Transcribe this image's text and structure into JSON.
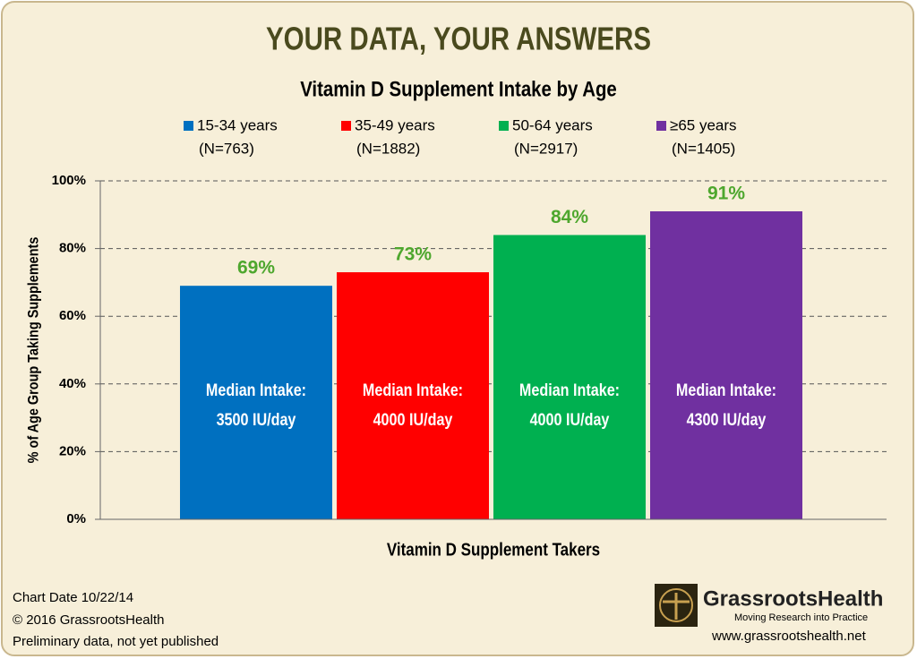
{
  "chart_data": {
    "type": "bar",
    "title": "YOUR DATA, YOUR ANSWERS",
    "subtitle": "Vitamin D Supplement Intake by Age",
    "y_label": "% of Age Group Taking Supplements",
    "categories": [
      "Vitamin D Supplement Takers"
    ],
    "series": [
      {
        "name": "15-34 years",
        "sample": "(N=763)",
        "color": "#0070c0",
        "values": [
          69
        ],
        "value_labels": [
          "69%"
        ],
        "note_lines": [
          "Median Intake:",
          "3500 IU/day"
        ]
      },
      {
        "name": "35-49 years",
        "sample": "(N=1882)",
        "color": "#ff0000",
        "values": [
          73
        ],
        "value_labels": [
          "73%"
        ],
        "note_lines": [
          "Median Intake:",
          "4000 IU/day"
        ]
      },
      {
        "name": "50-64 years",
        "sample": "(N=2917)",
        "color": "#00b050",
        "values": [
          84
        ],
        "value_labels": [
          "84%"
        ],
        "note_lines": [
          "Median Intake:",
          "4000 IU/day"
        ]
      },
      {
        "name": "≥65 years",
        "sample": "(N=1405)",
        "color": "#7030a0",
        "values": [
          91
        ],
        "value_labels": [
          "91%"
        ],
        "note_lines": [
          "Median Intake:",
          "4300 IU/day"
        ]
      }
    ],
    "value_label_color": "#4ea72e",
    "ylim": [
      0,
      100
    ],
    "yticks": [
      {
        "value": 0,
        "label": "0%"
      },
      {
        "value": 20,
        "label": "20%"
      },
      {
        "value": 40,
        "label": "40%"
      },
      {
        "value": 60,
        "label": "60%"
      },
      {
        "value": 80,
        "label": "80%"
      },
      {
        "value": 100,
        "label": "100%"
      }
    ],
    "grid": true,
    "legend": "top"
  },
  "footer": {
    "lines": [
      "Chart Date 10/22/14",
      "© 2016 GrassrootsHealth",
      "Preliminary data, not yet published"
    ]
  },
  "logo": {
    "name": "GrassrootsHealth",
    "tagline": "Moving Research into Practice",
    "url": "www.grassrootshealth.net"
  }
}
